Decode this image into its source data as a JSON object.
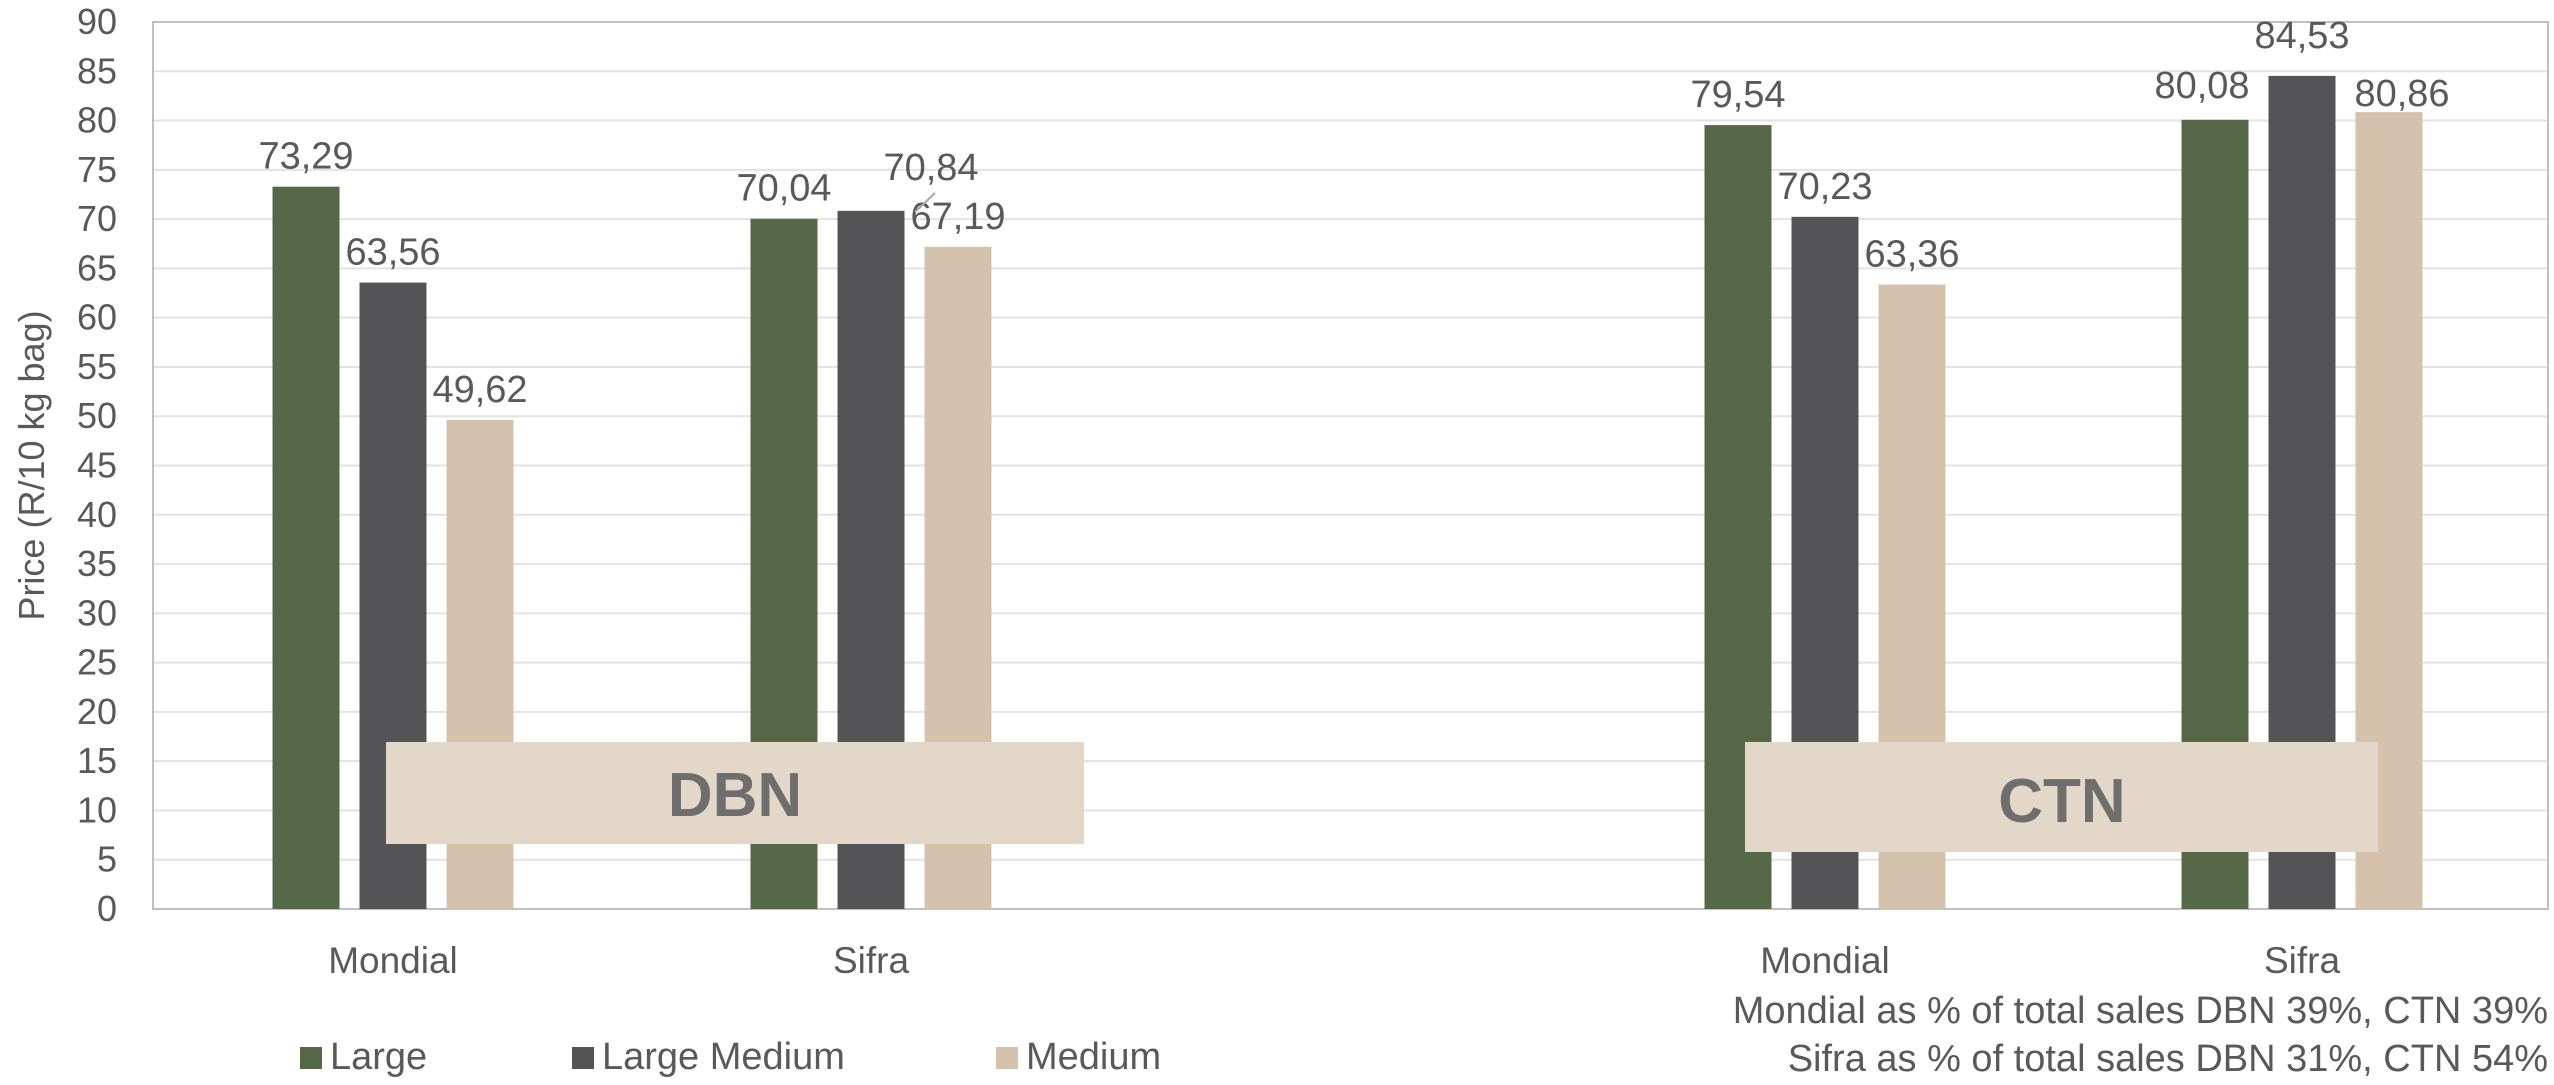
{
  "chart_data": {
    "type": "bar",
    "ylabel": "Price (R/10 kg bag)",
    "ylim": [
      0,
      90
    ],
    "ytick_step": 5,
    "grid": true,
    "legend_position": "bottom-left",
    "groups": [
      {
        "label": "DBN",
        "categories": [
          "Mondial",
          "Sifra"
        ]
      },
      {
        "label": "CTN",
        "categories": [
          "Mondial",
          "Sifra"
        ]
      }
    ],
    "categories": [
      "Mondial",
      "Sifra",
      "Mondial",
      "Sifra"
    ],
    "series": [
      {
        "name": "Large",
        "color": "#566847",
        "values": [
          73.29,
          70.04,
          79.54,
          80.08
        ],
        "labels": [
          "73,29",
          "70,04",
          "79,54",
          "80,08"
        ]
      },
      {
        "name": "Large Medium",
        "color": "#545456",
        "values": [
          63.56,
          70.84,
          70.23,
          84.53
        ],
        "labels": [
          "63,56",
          "70,84",
          "70,23",
          "84,53"
        ]
      },
      {
        "name": "Medium",
        "color": "#d5c2ad",
        "values": [
          49.62,
          67.19,
          63.36,
          80.86
        ],
        "labels": [
          "49,62",
          "67,19",
          "63,36",
          "80,86"
        ]
      }
    ],
    "annotations": [
      "Mondial as % of total sales DBN 39%, CTN 39%",
      "Sifra as % of total sales DBN 31%, CTN 54%"
    ]
  },
  "legend": [
    {
      "label": "Large",
      "color": "#566847"
    },
    {
      "label": "Large Medium",
      "color": "#545456"
    },
    {
      "label": "Medium",
      "color": "#d5c2ad"
    }
  ],
  "group_box_color": "#e3d7c9"
}
